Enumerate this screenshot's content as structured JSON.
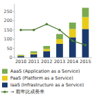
{
  "chart_data": {
    "type": "bar",
    "stacked": true,
    "grid": false,
    "categories": [
      "2010",
      "2011",
      "2012",
      "2013",
      "2014",
      "2015"
    ],
    "series": [
      {
        "name": "IaaS (Infrastructure as a Service)",
        "color": "#1a3a6e",
        "values": [
          8,
          18,
          35,
          75,
          110,
          155
        ]
      },
      {
        "name": "PaaS (Platform as a Service)",
        "color": "#e8cc18",
        "values": [
          3,
          7,
          12,
          25,
          45,
          65
        ]
      },
      {
        "name": "AaaS (Application as a Service)",
        "color": "#7aab50",
        "values": [
          4,
          9,
          16,
          28,
          35,
          50
        ]
      },
      {
        "name": "→ 前年比成長率",
        "type": "line",
        "axis": "y2",
        "marker": "circle",
        "color": "#4a7a30",
        "values": [
          62,
          62,
          75,
          62,
          38,
          28
        ]
      }
    ],
    "ylim": [
      0,
      290
    ],
    "yticks": [
      0,
      50,
      100,
      150,
      200,
      250
    ],
    "y2lim": [
      0,
      120
    ]
  }
}
